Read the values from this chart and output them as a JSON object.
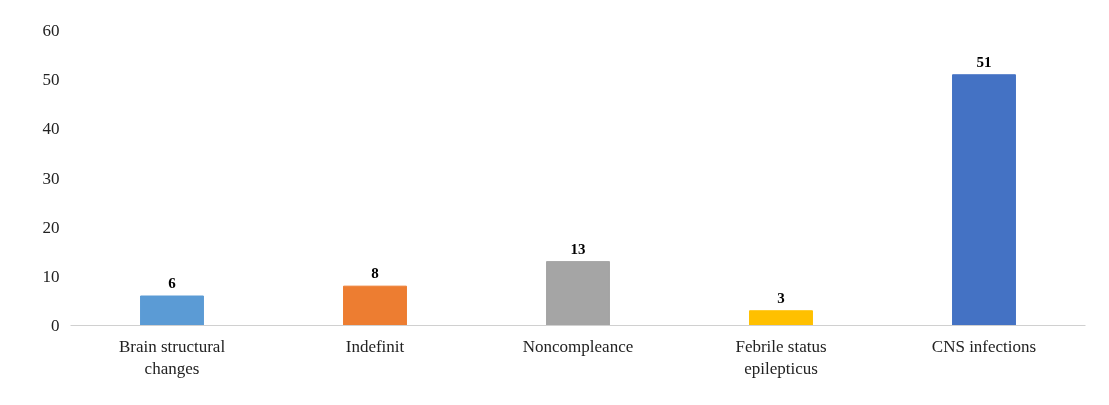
{
  "chart_data": {
    "type": "bar",
    "categories": [
      "Brain structural changes",
      "Indefinit",
      "Noncompleance",
      "Febrile status epilepticus",
      "CNS infections"
    ],
    "values": [
      6,
      8,
      13,
      3,
      51
    ],
    "colors": [
      "#5b9bd5",
      "#ed7d31",
      "#a5a5a5",
      "#ffc000",
      "#4472c4"
    ],
    "ylim": [
      0,
      60
    ],
    "yticks": [
      0,
      10,
      20,
      30,
      40,
      50,
      60
    ],
    "data_labels": true,
    "grid": false
  }
}
